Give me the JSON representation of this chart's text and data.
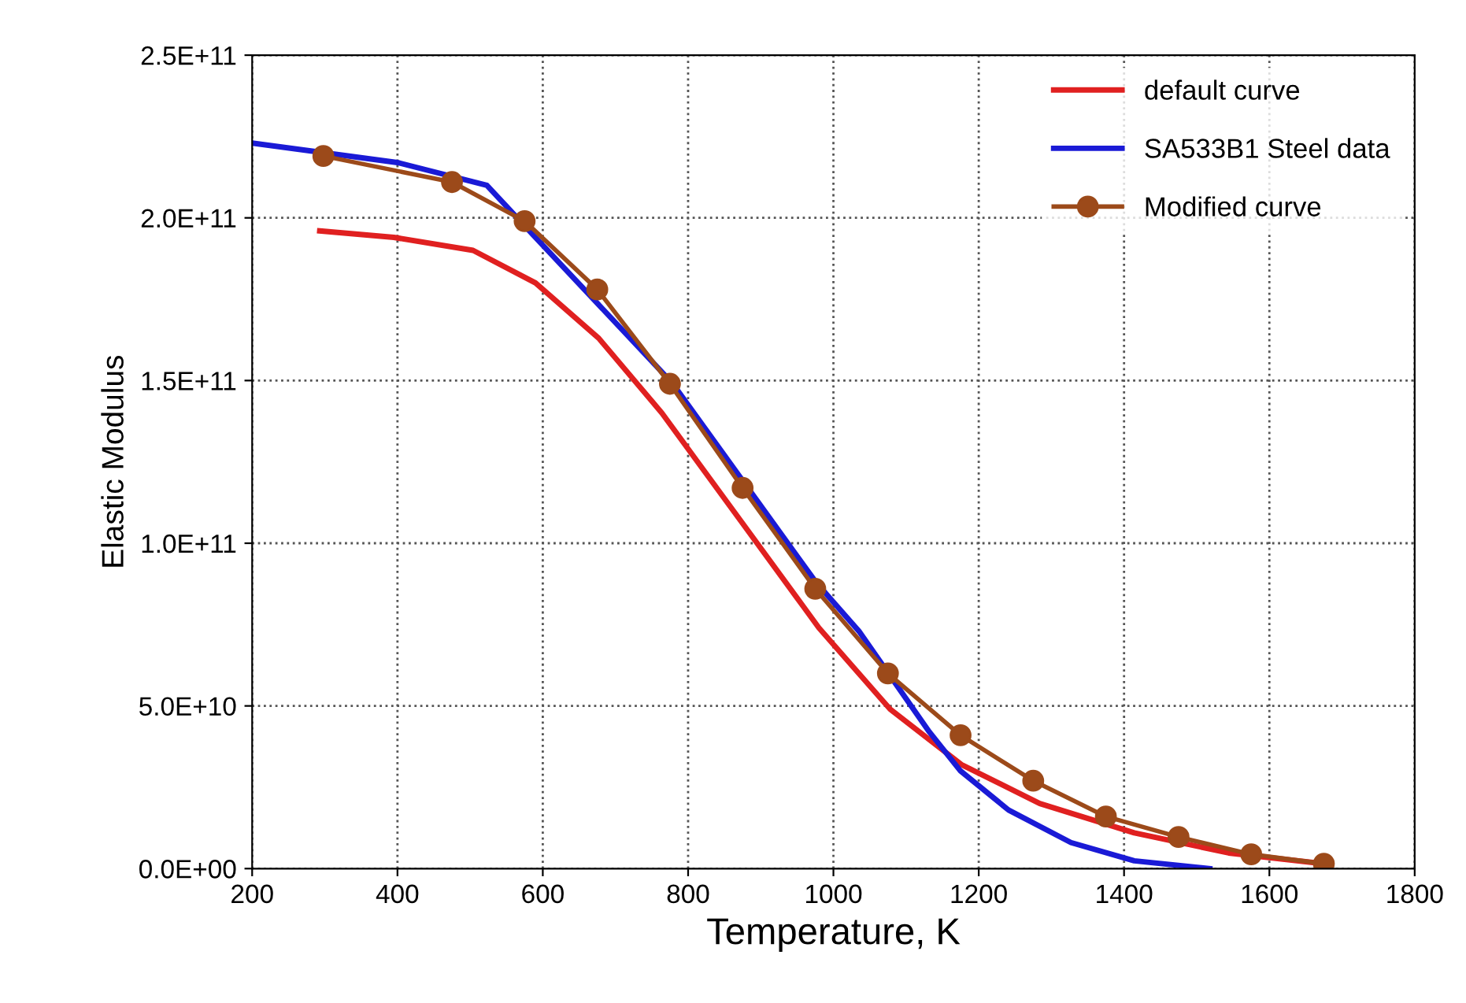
{
  "chart_data": {
    "type": "line",
    "xlabel": "Temperature, K",
    "ylabel": "Elastic Modulus",
    "xlim": [
      200,
      1800
    ],
    "xticks": [
      200,
      400,
      600,
      800,
      1000,
      1200,
      1400,
      1600,
      1800
    ],
    "ylim": [
      0,
      250000000000.0
    ],
    "yticks": [
      {
        "value": 0,
        "label": "0.0E+00"
      },
      {
        "value": 50000000000.0,
        "label": "5.0E+10"
      },
      {
        "value": 100000000000.0,
        "label": "1.0E+11"
      },
      {
        "value": 150000000000.0,
        "label": "1.5E+11"
      },
      {
        "value": 200000000000.0,
        "label": "2.0E+11"
      },
      {
        "value": 250000000000.0,
        "label": "2.5E+11"
      }
    ],
    "grid": true,
    "legend": "top right",
    "series": [
      {
        "name": "default curve",
        "color": "#e02020",
        "marker": "none",
        "line_style": "solid",
        "x": [
          293,
          395,
          504,
          590,
          677,
          764,
          872,
          980,
          1078,
          1176,
          1284,
          1414,
          1544,
          1675
        ],
        "values": [
          196000000000.0,
          194000000000.0,
          190000000000.0,
          180000000000.0,
          163000000000.0,
          140000000000.0,
          107000000000.0,
          74000000000.0,
          49000000000.0,
          32000000000.0,
          20000000000.0,
          11000000000.0,
          4800000000.0,
          1500000000.0
        ]
      },
      {
        "name": "SA533B1 Steel data",
        "color": "#1a1ad6",
        "marker": "none",
        "line_style": "solid",
        "x": [
          200,
          400,
          523,
          590,
          779,
          879,
          976,
          1035,
          1132,
          1175,
          1241,
          1327,
          1414,
          1518
        ],
        "values": [
          223000000000.0,
          217000000000.0,
          210000000000.0,
          194000000000.0,
          149000000000.0,
          118000000000.0,
          88000000000.0,
          73000000000.0,
          42000000000.0,
          30000000000.0,
          18000000000.0,
          8000000000.0,
          2400000000.0,
          0
        ]
      },
      {
        "name": "Modified curve",
        "color": "#9c4a1a",
        "marker": "circle",
        "line_style": "solid",
        "x": [
          298,
          475,
          575,
          675,
          775,
          875,
          975,
          1075,
          1175,
          1275,
          1375,
          1475,
          1575,
          1675
        ],
        "values": [
          219000000000.0,
          211000000000.0,
          199000000000.0,
          178000000000.0,
          149000000000.0,
          117000000000.0,
          86000000000.0,
          60000000000.0,
          41000000000.0,
          27000000000.0,
          16000000000.0,
          9700000000.0,
          4400000000.0,
          1500000000.0
        ]
      }
    ]
  }
}
